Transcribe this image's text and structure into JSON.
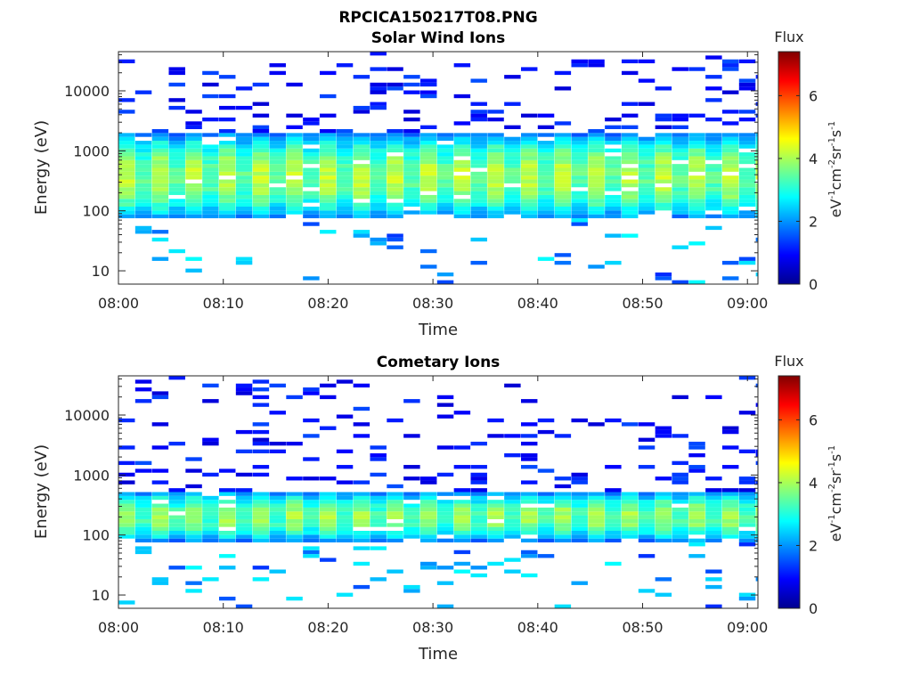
{
  "figure": {
    "title": "RPCICA150217T08.PNG"
  },
  "chart_data": [
    {
      "type": "heatmap",
      "title": "Solar Wind Ions",
      "xlabel": "Time",
      "ylabel": "Energy (eV)",
      "x_ticks": [
        "08:00",
        "08:10",
        "08:20",
        "08:30",
        "08:40",
        "08:50",
        "09:00"
      ],
      "x_range_minutes": [
        0,
        61
      ],
      "y_scale": "log",
      "y_ticks": [
        10,
        100,
        1000,
        10000
      ],
      "y_tick_labels": [
        "10",
        "100",
        "1000",
        "10000"
      ],
      "y_range": [
        6,
        45000
      ],
      "colorbar": {
        "label": "Flux",
        "unit_label": "eV-1cm-2sr-1s-1",
        "ticks": [
          0,
          2,
          4,
          6
        ],
        "range": [
          0,
          7.4
        ],
        "colormap": "jet"
      },
      "scan_period_minutes": 3.2,
      "core_band_eV": [
        70,
        2000
      ],
      "core_peak_log_flux": 4.2,
      "grid": false
    },
    {
      "type": "heatmap",
      "title": "Cometary Ions",
      "xlabel": "Time",
      "ylabel": "Energy (eV)",
      "x_ticks": [
        "08:00",
        "08:10",
        "08:20",
        "08:30",
        "08:40",
        "08:50",
        "09:00"
      ],
      "x_range_minutes": [
        0,
        61
      ],
      "y_scale": "log",
      "y_ticks": [
        10,
        100,
        1000,
        10000
      ],
      "y_tick_labels": [
        "10",
        "100",
        "1000",
        "10000"
      ],
      "y_range": [
        6,
        45000
      ],
      "colorbar": {
        "label": "Flux",
        "unit_label": "eV-1cm-2sr-1s-1",
        "ticks": [
          0,
          2,
          4,
          6
        ],
        "range": [
          0,
          7.4
        ],
        "colormap": "jet"
      },
      "scan_period_minutes": 3.2,
      "core_band_eV": [
        75,
        550
      ],
      "core_peak_log_flux": 4.0,
      "grid": false
    }
  ]
}
